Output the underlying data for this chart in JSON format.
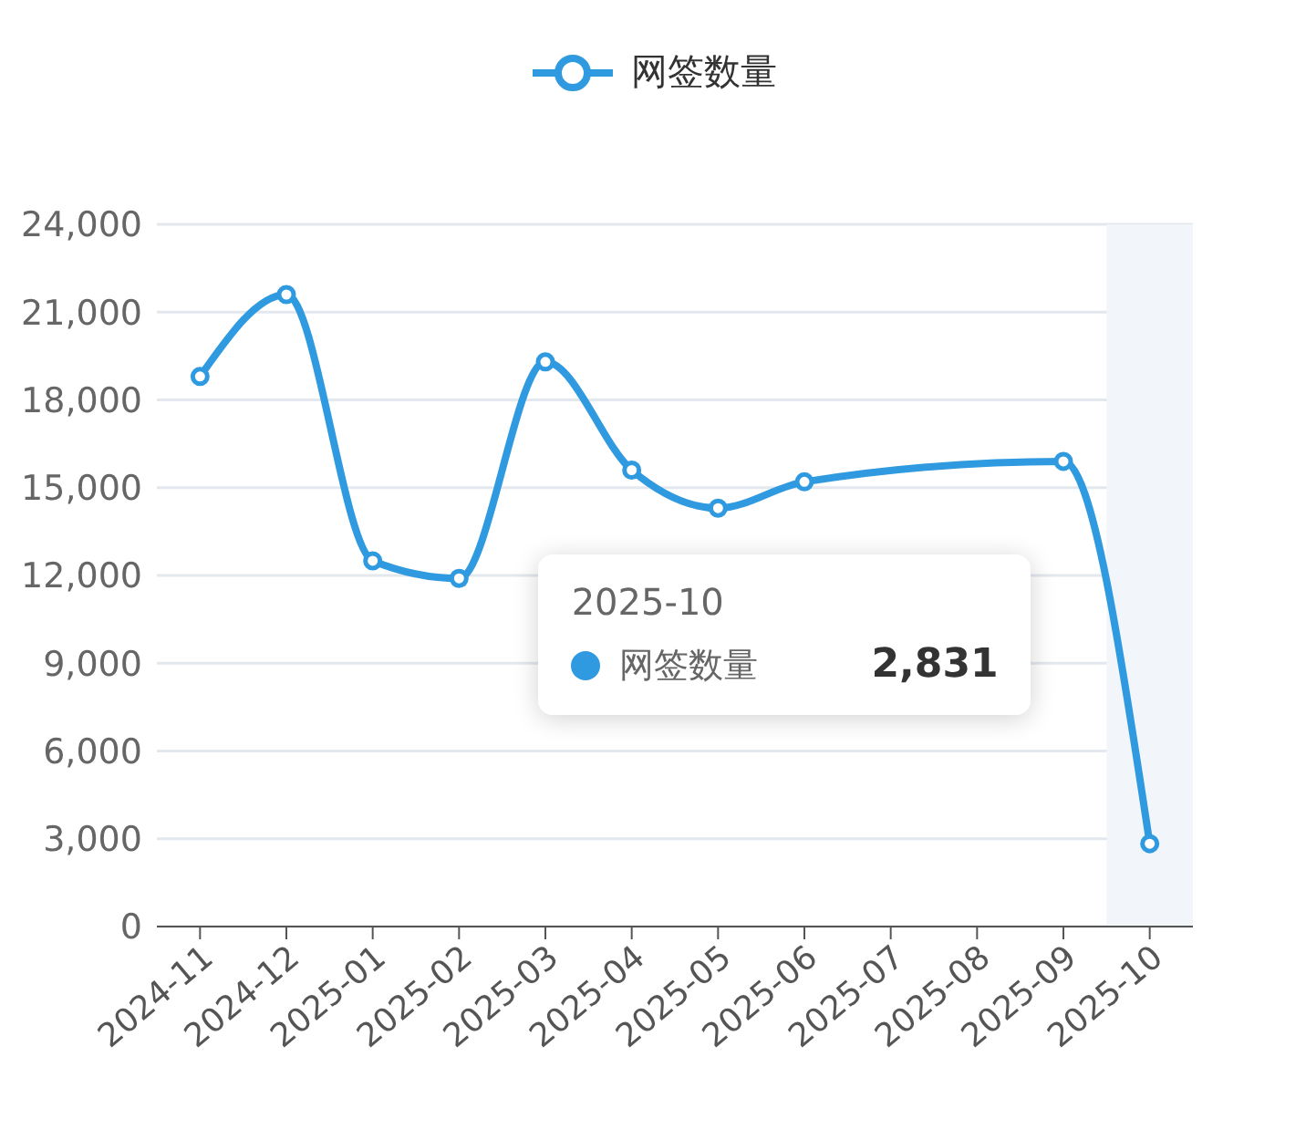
{
  "chart_data": {
    "type": "line",
    "categories": [
      "2024-11",
      "2024-12",
      "2025-01",
      "2025-02",
      "2025-03",
      "2025-04",
      "2025-05",
      "2025-06",
      "2025-07",
      "2025-08",
      "2025-09",
      "2025-10"
    ],
    "series": [
      {
        "name": "网签数量",
        "color": "#2f9ae0",
        "values": [
          18800,
          21600,
          12500,
          11900,
          19300,
          15600,
          14300,
          15200,
          null,
          null,
          15900,
          2831
        ]
      }
    ],
    "ylim": [
      0,
      24000
    ],
    "yticks": [
      {
        "value": 0,
        "label": "0"
      },
      {
        "value": 3000,
        "label": "3,000"
      },
      {
        "value": 6000,
        "label": "6,000"
      },
      {
        "value": 9000,
        "label": "9,000"
      },
      {
        "value": 12000,
        "label": "12,000"
      },
      {
        "value": 15000,
        "label": "15,000"
      },
      {
        "value": 18000,
        "label": "18,000"
      },
      {
        "value": 21000,
        "label": "21,000"
      },
      {
        "value": 24000,
        "label": "24,000"
      }
    ],
    "grid": "y",
    "legend": "top",
    "marker": "circle",
    "line_style": "solid",
    "bands": [
      {
        "axis": "x",
        "from": "2025-10",
        "to": "2025-10",
        "color": "#f2f5fa"
      }
    ],
    "annotations": [
      "2025-10",
      "网签数量",
      "2,831"
    ]
  }
}
